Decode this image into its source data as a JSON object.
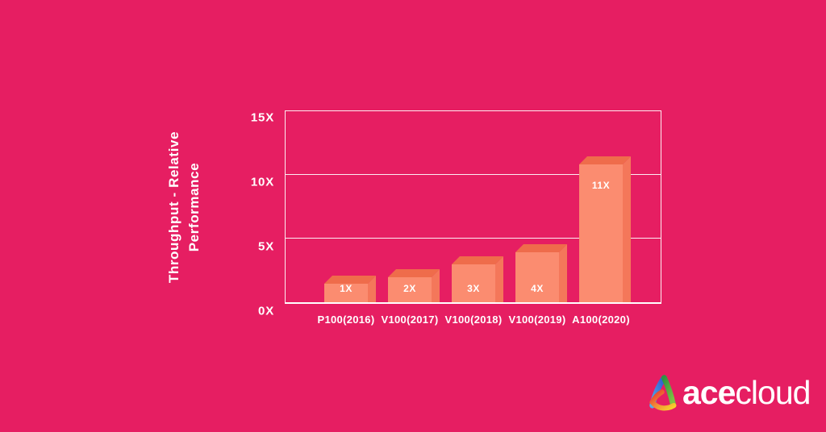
{
  "background_color": "#E61E62",
  "chart_data": {
    "type": "bar",
    "title": "",
    "categories": [
      "P100(2016)",
      "V100(2017)",
      "V100(2018)",
      "V100(2019)",
      "A100(2020)"
    ],
    "values": [
      1,
      2,
      3,
      4,
      11
    ],
    "bar_labels": [
      "1X",
      "2X",
      "3X",
      "4X",
      "11X"
    ],
    "xlabel": "",
    "ylabel": "Throughput - Relative Performance",
    "ylabel_lines": [
      "Throughput - Relative",
      "Performance"
    ],
    "ylim": [
      0,
      15
    ],
    "yticks": [
      {
        "value": 0,
        "label": "0X"
      },
      {
        "value": 5,
        "label": "5X"
      },
      {
        "value": 10,
        "label": "10X"
      },
      {
        "value": 15,
        "label": "15X"
      }
    ],
    "grid": true,
    "legend": false,
    "colors": {
      "background": "#E61E62",
      "bar_face": "#FB8C70",
      "bar_top": "#EF6C4B",
      "bar_side": "#F4775A",
      "axis": "#FFFFFF",
      "text": "#FFFFFF"
    }
  },
  "branding": {
    "logo_mark": "acecloud-triangle-logo",
    "logo_text_bold": "ace",
    "logo_text_regular": "cloud",
    "logo_colors": {
      "blue_start": "#54AEEA",
      "blue_end": "#2E55CF",
      "green_start": "#2F9440",
      "green_end": "#7DC242",
      "yellow": "#F6D32B",
      "orange": "#F28A36",
      "red": "#E8352E"
    }
  }
}
